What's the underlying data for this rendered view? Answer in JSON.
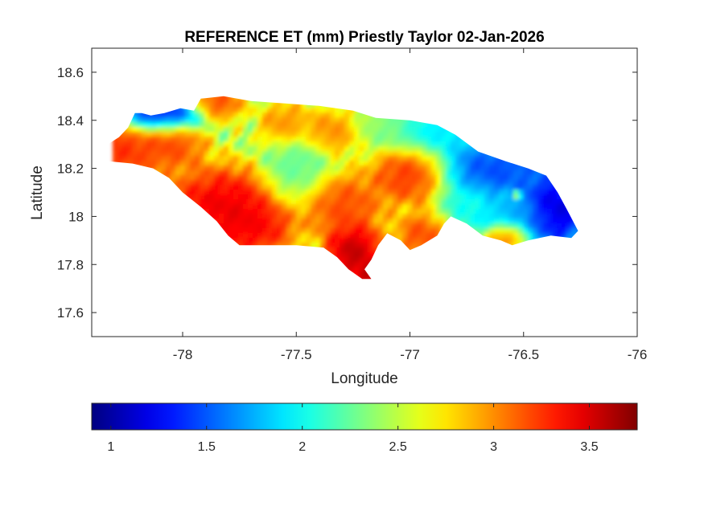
{
  "chart_data": {
    "type": "heatmap",
    "title": "REFERENCE ET (mm) Priestly Taylor 02-Jan-2026",
    "xlabel": "Longitude",
    "ylabel": "Latitude",
    "xlim": [
      -78.4,
      -76.0
    ],
    "ylim": [
      17.5,
      18.7
    ],
    "xticks": [
      -78,
      -77.5,
      -77,
      -76.5,
      -76
    ],
    "xtick_labels": [
      "-78",
      "-77.5",
      "-77",
      "-76.5",
      "-76"
    ],
    "yticks": [
      17.6,
      17.8,
      18.0,
      18.2,
      18.4,
      18.6
    ],
    "ytick_labels": [
      "17.6",
      "17.8",
      "18",
      "18.2",
      "18.4",
      "18.6"
    ],
    "colormap": "jet",
    "clim": [
      0.9,
      3.75
    ],
    "colorbar": {
      "location": "bottom",
      "ticks": [
        1,
        1.5,
        2,
        2.5,
        3,
        3.5
      ],
      "tick_labels": [
        "1",
        "1.5",
        "2",
        "2.5",
        "3",
        "3.5"
      ]
    },
    "grid": false,
    "outline_lonlat": [
      [
        -78.37,
        18.27
      ],
      [
        -78.33,
        18.3
      ],
      [
        -78.28,
        18.33
      ],
      [
        -78.24,
        18.37
      ],
      [
        -78.21,
        18.43
      ],
      [
        -78.18,
        18.43
      ],
      [
        -78.14,
        18.42
      ],
      [
        -78.08,
        18.43
      ],
      [
        -78.01,
        18.45
      ],
      [
        -77.95,
        18.44
      ],
      [
        -77.92,
        18.49
      ],
      [
        -77.82,
        18.5
      ],
      [
        -77.7,
        18.48
      ],
      [
        -77.55,
        18.47
      ],
      [
        -77.4,
        18.46
      ],
      [
        -77.25,
        18.44
      ],
      [
        -77.15,
        18.41
      ],
      [
        -77.0,
        18.4
      ],
      [
        -76.88,
        18.38
      ],
      [
        -76.8,
        18.34
      ],
      [
        -76.7,
        18.27
      ],
      [
        -76.58,
        18.23
      ],
      [
        -76.48,
        18.2
      ],
      [
        -76.4,
        18.17
      ],
      [
        -76.35,
        18.1
      ],
      [
        -76.31,
        18.03
      ],
      [
        -76.26,
        17.94
      ],
      [
        -76.29,
        17.91
      ],
      [
        -76.38,
        17.92
      ],
      [
        -76.48,
        17.9
      ],
      [
        -76.55,
        17.88
      ],
      [
        -76.6,
        17.9
      ],
      [
        -76.68,
        17.92
      ],
      [
        -76.75,
        17.97
      ],
      [
        -76.82,
        18.0
      ],
      [
        -76.85,
        17.97
      ],
      [
        -76.88,
        17.92
      ],
      [
        -76.95,
        17.88
      ],
      [
        -77.0,
        17.86
      ],
      [
        -77.04,
        17.9
      ],
      [
        -77.1,
        17.93
      ],
      [
        -77.14,
        17.88
      ],
      [
        -77.17,
        17.82
      ],
      [
        -77.2,
        17.78
      ],
      [
        -77.17,
        17.74
      ],
      [
        -77.21,
        17.74
      ],
      [
        -77.27,
        17.78
      ],
      [
        -77.32,
        17.83
      ],
      [
        -77.38,
        17.87
      ],
      [
        -77.5,
        17.88
      ],
      [
        -77.62,
        17.88
      ],
      [
        -77.75,
        17.88
      ],
      [
        -77.8,
        17.92
      ],
      [
        -77.85,
        17.98
      ],
      [
        -77.92,
        18.04
      ],
      [
        -78.0,
        18.1
      ],
      [
        -78.06,
        18.16
      ],
      [
        -78.13,
        18.2
      ],
      [
        -78.22,
        18.22
      ],
      [
        -78.33,
        18.23
      ],
      [
        -78.37,
        18.25
      ]
    ],
    "value_features": [
      {
        "lon": -78.27,
        "lat": 18.28,
        "sigma_lon": 0.1,
        "sigma_lat": 0.07,
        "value": 3.4
      },
      {
        "lon": -78.05,
        "lat": 18.3,
        "sigma_lon": 0.08,
        "sigma_lat": 0.06,
        "value": 3.3
      },
      {
        "lon": -77.82,
        "lat": 18.04,
        "sigma_lon": 0.14,
        "sigma_lat": 0.09,
        "value": 3.6
      },
      {
        "lon": -77.7,
        "lat": 17.95,
        "sigma_lon": 0.1,
        "sigma_lat": 0.06,
        "value": 3.5
      },
      {
        "lon": -77.25,
        "lat": 17.85,
        "sigma_lon": 0.07,
        "sigma_lat": 0.07,
        "value": 3.75
      },
      {
        "lon": -77.18,
        "lat": 17.76,
        "sigma_lon": 0.03,
        "sigma_lat": 0.03,
        "value": 3.75
      },
      {
        "lon": -77.3,
        "lat": 18.05,
        "sigma_lon": 0.1,
        "sigma_lat": 0.07,
        "value": 3.3
      },
      {
        "lon": -77.0,
        "lat": 18.18,
        "sigma_lon": 0.09,
        "sigma_lat": 0.07,
        "value": 3.4
      },
      {
        "lon": -76.95,
        "lat": 17.92,
        "sigma_lon": 0.06,
        "sigma_lat": 0.05,
        "value": 3.3
      },
      {
        "lon": -77.85,
        "lat": 18.47,
        "sigma_lon": 0.06,
        "sigma_lat": 0.04,
        "value": 3.3
      },
      {
        "lon": -77.55,
        "lat": 18.38,
        "sigma_lon": 0.06,
        "sigma_lat": 0.05,
        "value": 3.1
      },
      {
        "lon": -77.35,
        "lat": 18.35,
        "sigma_lon": 0.07,
        "sigma_lat": 0.05,
        "value": 3.1
      },
      {
        "lon": -76.58,
        "lat": 17.92,
        "sigma_lon": 0.05,
        "sigma_lat": 0.03,
        "value": 3.3
      },
      {
        "lon": -78.1,
        "lat": 18.42,
        "sigma_lon": 0.1,
        "sigma_lat": 0.04,
        "value": 1.0
      },
      {
        "lon": -77.5,
        "lat": 18.2,
        "sigma_lon": 0.08,
        "sigma_lat": 0.08,
        "value": 2.2
      },
      {
        "lon": -77.1,
        "lat": 18.38,
        "sigma_lon": 0.08,
        "sigma_lat": 0.05,
        "value": 2.4
      },
      {
        "lon": -76.9,
        "lat": 18.35,
        "sigma_lon": 0.12,
        "sigma_lat": 0.06,
        "value": 1.8
      },
      {
        "lon": -76.62,
        "lat": 18.2,
        "sigma_lon": 0.14,
        "sigma_lat": 0.07,
        "value": 1.3
      },
      {
        "lon": -76.36,
        "lat": 18.03,
        "sigma_lon": 0.08,
        "sigma_lat": 0.08,
        "value": 0.9
      },
      {
        "lon": -76.55,
        "lat": 18.0,
        "sigma_lon": 0.1,
        "sigma_lat": 0.05,
        "value": 1.7
      },
      {
        "lon": -76.53,
        "lat": 18.09,
        "sigma_lon": 0.01,
        "sigma_lat": 0.01,
        "value": 3.1
      },
      {
        "lon": -76.75,
        "lat": 18.05,
        "sigma_lon": 0.06,
        "sigma_lat": 0.05,
        "value": 2.0
      }
    ]
  }
}
